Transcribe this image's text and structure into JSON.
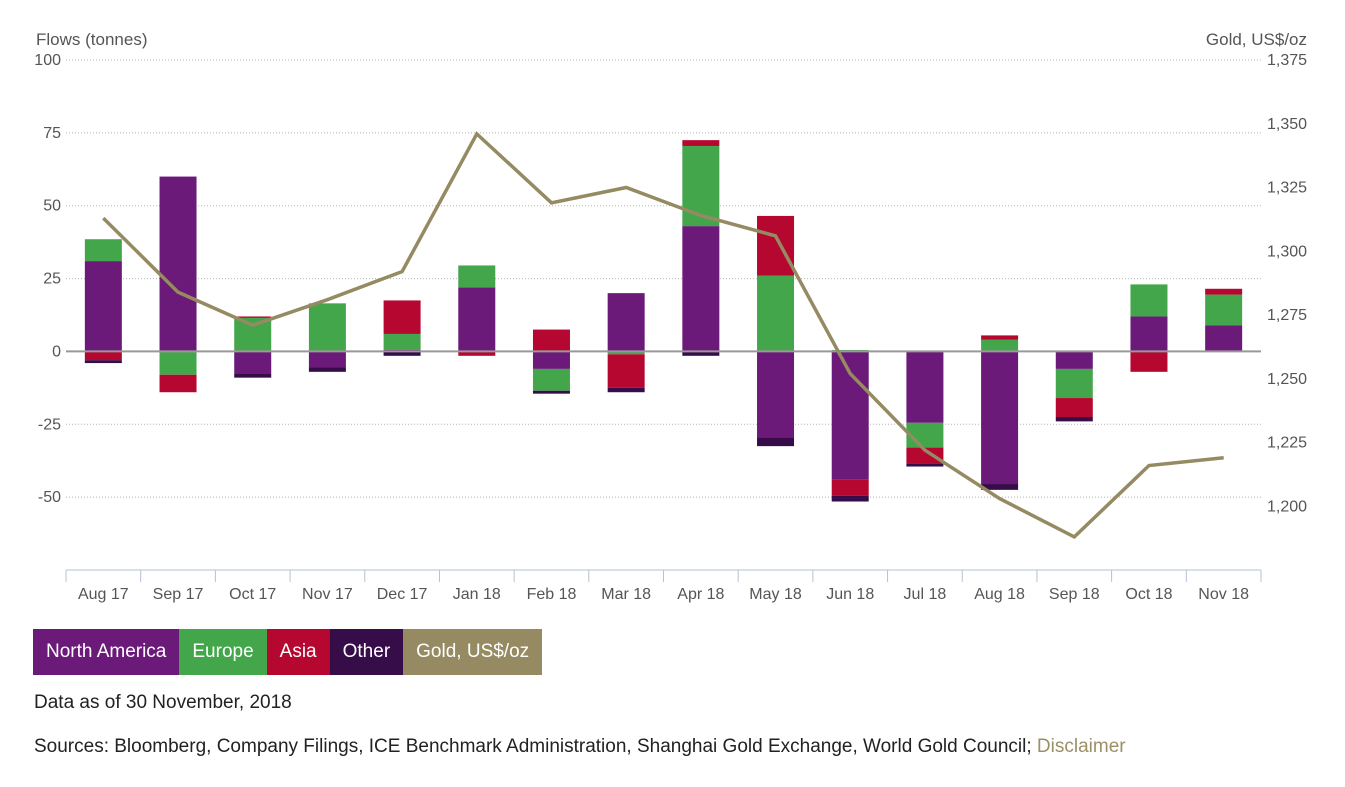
{
  "chart_data": {
    "type": "bar",
    "stacked": true,
    "categories": [
      "Aug 17",
      "Sep 17",
      "Oct 17",
      "Nov 17",
      "Dec 17",
      "Jan 18",
      "Feb 18",
      "Mar 18",
      "Apr 18",
      "May 18",
      "Jun 18",
      "Jul 18",
      "Aug 18",
      "Sep 18",
      "Oct 18",
      "Nov 18"
    ],
    "ylabel": "Flows (tonnes)",
    "ylim": [
      -75,
      100
    ],
    "yticks": [
      "100",
      "75",
      "50",
      "25",
      "0",
      "-25",
      "-50"
    ],
    "y2label": "Gold, US$/oz",
    "y2lim": [
      1175,
      1375
    ],
    "y2ticks": [
      "1,375",
      "1,350",
      "1,325",
      "1,300",
      "1,275",
      "1,250",
      "1,225",
      "1,200"
    ],
    "grid": true,
    "series": [
      {
        "name": "North America",
        "color": "#6b1a7a",
        "values": [
          31,
          60,
          -7.5,
          -5.5,
          0.5,
          22,
          -6,
          20,
          43,
          -29.5,
          -44,
          -24.5,
          -45.5,
          -6,
          12,
          9
        ]
      },
      {
        "name": "Europe",
        "color": "#43a64b",
        "values": [
          7.5,
          -8,
          11.5,
          16.5,
          5.5,
          7.5,
          -7.5,
          -1,
          27.5,
          26,
          0.5,
          -8.5,
          4,
          -10,
          11,
          10.5
        ]
      },
      {
        "name": "Asia",
        "color": "#b5072f",
        "values": [
          -3,
          -6,
          0.5,
          0,
          11.5,
          -1.5,
          7.5,
          -11.5,
          2,
          20.5,
          -5.5,
          -5.5,
          1.5,
          -6.5,
          -7,
          2
        ]
      },
      {
        "name": "Other",
        "color": "#360d48",
        "values": [
          -1,
          0,
          -1.5,
          -1.5,
          -1.5,
          0,
          -1,
          -1.5,
          -1.5,
          -3,
          -2,
          -1,
          -2,
          -1.5,
          0,
          0
        ]
      }
    ],
    "line_series": {
      "name": "Gold, US$/oz",
      "color": "#958a61",
      "axis": "right",
      "values": [
        1313,
        1284,
        1271,
        1281,
        1292,
        1346,
        1319,
        1325,
        1314,
        1306,
        1252,
        1222,
        1203,
        1188,
        1216,
        1219
      ]
    }
  },
  "legend": {
    "items": [
      {
        "label": "North America",
        "color": "#6b1a7a"
      },
      {
        "label": "Europe",
        "color": "#43a64b"
      },
      {
        "label": "Asia",
        "color": "#b5072f"
      },
      {
        "label": "Other",
        "color": "#360d48"
      },
      {
        "label": "Gold, US$/oz",
        "color": "#958a61"
      }
    ]
  },
  "footer": {
    "data_as_of": "Data as of 30 November, 2018",
    "sources": "Sources: Bloomberg, Company Filings, ICE Benchmark Administration, Shanghai Gold Exchange, World Gold Council; ",
    "disclaimer_link": "Disclaimer"
  }
}
